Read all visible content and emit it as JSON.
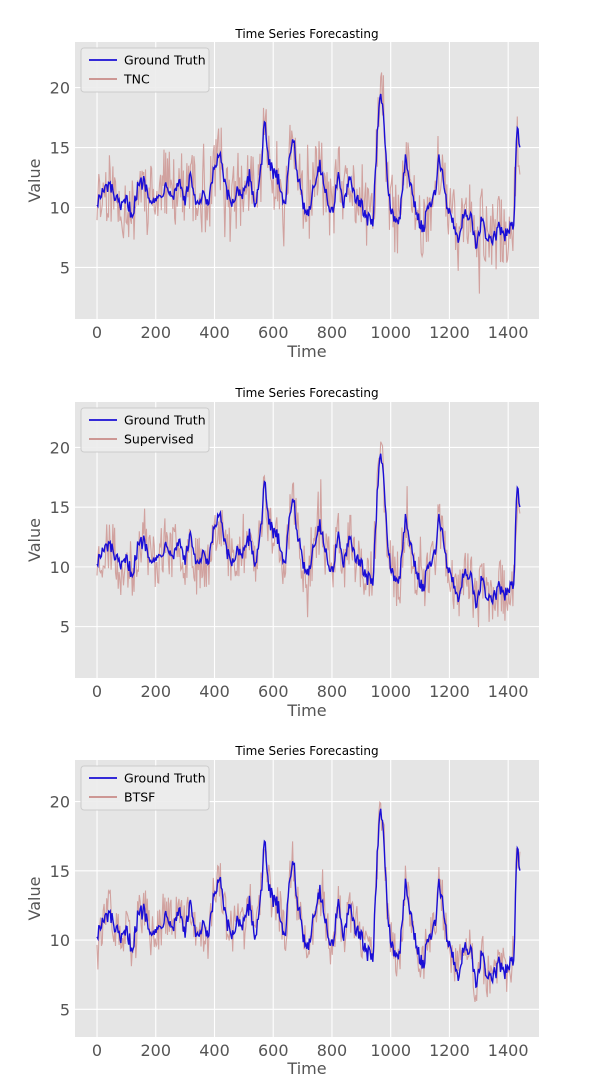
{
  "chart_data": [
    {
      "type": "line",
      "title": "Time Series Forecasting",
      "xlabel": "Time",
      "ylabel": "Value",
      "xlim": [
        -75,
        1505
      ],
      "ylim": [
        0.7,
        23.8
      ],
      "xticks": [
        0,
        200,
        400,
        600,
        800,
        1000,
        1200,
        1400
      ],
      "yticks": [
        5,
        10,
        15,
        20
      ],
      "grid": true,
      "legend_position": "upper-left",
      "series": [
        {
          "name": "Ground Truth",
          "color": "#1a0ed6",
          "role": "truth",
          "x": [
            0,
            20,
            40,
            60,
            80,
            100,
            120,
            140,
            160,
            180,
            200,
            220,
            240,
            260,
            280,
            300,
            320,
            340,
            360,
            380,
            400,
            420,
            440,
            460,
            480,
            500,
            520,
            540,
            560,
            570,
            580,
            600,
            620,
            640,
            660,
            670,
            680,
            700,
            720,
            740,
            760,
            780,
            800,
            820,
            840,
            860,
            880,
            900,
            920,
            940,
            955,
            965,
            975,
            990,
            1010,
            1030,
            1050,
            1070,
            1090,
            1110,
            1130,
            1150,
            1165,
            1175,
            1190,
            1210,
            1230,
            1250,
            1270,
            1290,
            1310,
            1330,
            1350,
            1370,
            1390,
            1410,
            1420,
            1430,
            1440
          ],
          "y": [
            10.5,
            11.2,
            11.9,
            11.0,
            9.8,
            10.6,
            9.4,
            11.8,
            12.2,
            11.0,
            10.4,
            11.3,
            12.0,
            11.0,
            12.3,
            10.6,
            12.7,
            9.9,
            10.9,
            10.2,
            13.5,
            14.2,
            11.2,
            10.3,
            11.6,
            10.9,
            12.7,
            10.0,
            13.8,
            17.5,
            14.2,
            12.8,
            12.4,
            10.1,
            15.2,
            15.9,
            13.2,
            10.3,
            9.6,
            12.1,
            13.6,
            11.1,
            9.3,
            12.8,
            10.2,
            12.2,
            11.0,
            10.1,
            9.0,
            8.9,
            16.5,
            19.3,
            18.2,
            11.3,
            9.2,
            8.8,
            14.1,
            11.5,
            9.4,
            8.2,
            10.1,
            10.9,
            14.3,
            13.0,
            10.2,
            9.0,
            7.4,
            9.5,
            9.6,
            6.5,
            8.9,
            7.4,
            7.3,
            8.3,
            7.6,
            8.4,
            9.0,
            16.6,
            15.3
          ]
        },
        {
          "name": "TNC",
          "color": "#c98b87",
          "role": "prediction",
          "noise": 3.0,
          "seed": 11
        }
      ]
    },
    {
      "type": "line",
      "title": "Time Series Forecasting",
      "xlabel": "Time",
      "ylabel": "Value",
      "xlim": [
        -75,
        1505
      ],
      "ylim": [
        0.7,
        23.8
      ],
      "xticks": [
        0,
        200,
        400,
        600,
        800,
        1000,
        1200,
        1400
      ],
      "yticks": [
        5,
        10,
        15,
        20
      ],
      "grid": true,
      "legend_position": "upper-left",
      "series": [
        {
          "name": "Ground Truth",
          "color": "#1a0ed6",
          "role": "truth",
          "x": [
            0,
            20,
            40,
            60,
            80,
            100,
            120,
            140,
            160,
            180,
            200,
            220,
            240,
            260,
            280,
            300,
            320,
            340,
            360,
            380,
            400,
            420,
            440,
            460,
            480,
            500,
            520,
            540,
            560,
            570,
            580,
            600,
            620,
            640,
            660,
            670,
            680,
            700,
            720,
            740,
            760,
            780,
            800,
            820,
            840,
            860,
            880,
            900,
            920,
            940,
            955,
            965,
            975,
            990,
            1010,
            1030,
            1050,
            1070,
            1090,
            1110,
            1130,
            1150,
            1165,
            1175,
            1190,
            1210,
            1230,
            1250,
            1270,
            1290,
            1310,
            1330,
            1350,
            1370,
            1390,
            1410,
            1420,
            1430,
            1440
          ],
          "y": [
            10.5,
            11.2,
            11.9,
            11.0,
            9.8,
            10.6,
            9.4,
            11.8,
            12.2,
            11.0,
            10.4,
            11.3,
            12.0,
            11.0,
            12.3,
            10.6,
            12.7,
            9.9,
            10.9,
            10.2,
            13.5,
            14.2,
            11.2,
            10.3,
            11.6,
            10.9,
            12.7,
            10.0,
            13.8,
            17.5,
            14.2,
            12.8,
            12.4,
            10.1,
            15.2,
            15.9,
            13.2,
            10.3,
            9.6,
            12.1,
            13.6,
            11.1,
            9.3,
            12.8,
            10.2,
            12.2,
            11.0,
            10.1,
            9.0,
            8.9,
            16.5,
            19.3,
            18.2,
            11.3,
            9.2,
            8.8,
            14.1,
            11.5,
            9.4,
            8.2,
            10.1,
            10.9,
            14.3,
            13.0,
            10.2,
            9.0,
            7.4,
            9.5,
            9.6,
            6.5,
            8.9,
            7.4,
            7.3,
            8.3,
            7.6,
            8.4,
            9.0,
            16.6,
            15.3
          ]
        },
        {
          "name": "Supervised",
          "color": "#c98b87",
          "role": "prediction",
          "noise": 2.4,
          "seed": 23
        }
      ]
    },
    {
      "type": "line",
      "title": "Time Series Forecasting",
      "xlabel": "Time",
      "ylabel": "Value",
      "xlim": [
        -75,
        1505
      ],
      "ylim": [
        3.0,
        23.0
      ],
      "xticks": [
        0,
        200,
        400,
        600,
        800,
        1000,
        1200,
        1400
      ],
      "yticks": [
        5,
        10,
        15,
        20
      ],
      "grid": true,
      "legend_position": "upper-left",
      "series": [
        {
          "name": "Ground Truth",
          "color": "#1a0ed6",
          "role": "truth",
          "x": [
            0,
            20,
            40,
            60,
            80,
            100,
            120,
            140,
            160,
            180,
            200,
            220,
            240,
            260,
            280,
            300,
            320,
            340,
            360,
            380,
            400,
            420,
            440,
            460,
            480,
            500,
            520,
            540,
            560,
            570,
            580,
            600,
            620,
            640,
            660,
            670,
            680,
            700,
            720,
            740,
            760,
            780,
            800,
            820,
            840,
            860,
            880,
            900,
            920,
            940,
            955,
            965,
            975,
            990,
            1010,
            1030,
            1050,
            1070,
            1090,
            1110,
            1130,
            1150,
            1165,
            1175,
            1190,
            1210,
            1230,
            1250,
            1270,
            1290,
            1310,
            1330,
            1350,
            1370,
            1390,
            1410,
            1420,
            1430,
            1440
          ],
          "y": [
            10.5,
            11.2,
            11.9,
            11.0,
            9.8,
            10.6,
            9.4,
            11.8,
            12.2,
            11.0,
            10.4,
            11.3,
            12.0,
            11.0,
            12.3,
            10.6,
            12.7,
            9.9,
            10.9,
            10.2,
            13.5,
            14.2,
            11.2,
            10.3,
            11.6,
            10.9,
            12.7,
            10.0,
            13.8,
            17.5,
            14.2,
            12.8,
            12.4,
            10.1,
            15.2,
            15.9,
            13.2,
            10.3,
            9.6,
            12.1,
            13.6,
            11.1,
            9.3,
            12.8,
            10.2,
            12.2,
            11.0,
            10.1,
            9.0,
            8.9,
            16.5,
            19.3,
            18.2,
            11.3,
            9.2,
            8.8,
            14.1,
            11.5,
            9.4,
            8.2,
            10.1,
            10.9,
            14.3,
            13.0,
            10.2,
            9.0,
            7.4,
            9.5,
            9.6,
            6.5,
            8.9,
            7.4,
            7.3,
            8.3,
            7.6,
            8.4,
            9.0,
            16.6,
            15.3
          ]
        },
        {
          "name": "BTSF",
          "color": "#c98b87",
          "role": "prediction",
          "noise": 1.7,
          "seed": 37
        }
      ]
    }
  ]
}
